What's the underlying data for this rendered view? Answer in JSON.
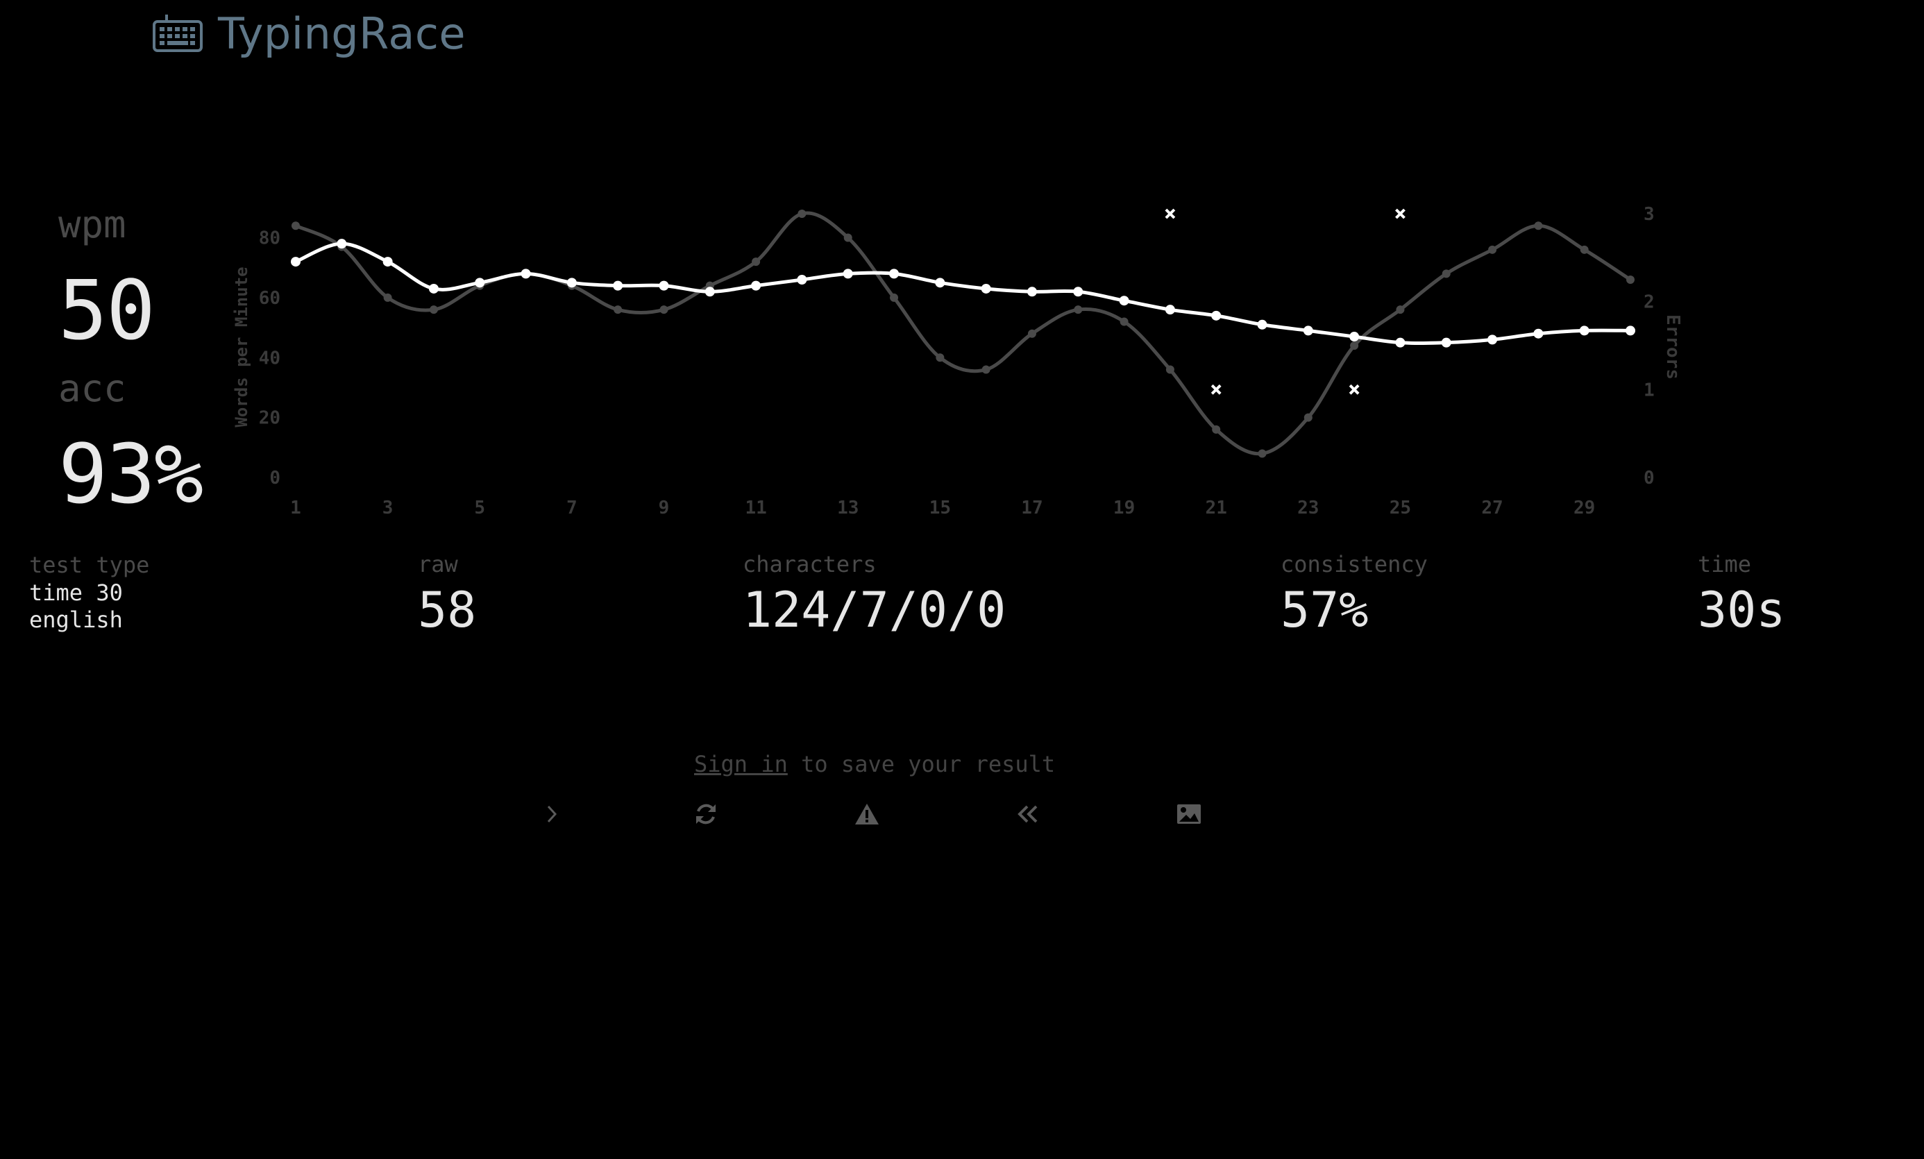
{
  "header": {
    "title": "TypingRace"
  },
  "stats": {
    "wpm_label": "wpm",
    "wpm_value": "50",
    "acc_label": "acc",
    "acc_value": "93%"
  },
  "details": {
    "test_type_label": "test type",
    "test_type_mode": "time 30",
    "test_type_language": "english",
    "raw_label": "raw",
    "raw_value": "58",
    "characters_label": "characters",
    "characters_value": "124/7/0/0",
    "consistency_label": "consistency",
    "consistency_value": "57%",
    "time_label": "time",
    "time_value": "30s"
  },
  "footer": {
    "signin_link": "Sign in",
    "signin_text": " to save your result"
  },
  "actions": [
    {
      "name": "next-test-button",
      "icon": "chevron-right-icon"
    },
    {
      "name": "restart-button",
      "icon": "refresh-icon"
    },
    {
      "name": "report-button",
      "icon": "warning-icon"
    },
    {
      "name": "replay-button",
      "icon": "double-chevron-left-icon"
    },
    {
      "name": "screenshot-button",
      "icon": "image-icon"
    }
  ],
  "colors": {
    "background": "#000000",
    "logo": "#5f7788",
    "wpm_line": "#ffffff",
    "raw_line": "#4a4a4a",
    "axis_text": "#3a3a3a"
  },
  "chart_data": {
    "type": "line",
    "x": [
      1,
      2,
      3,
      4,
      5,
      6,
      7,
      8,
      9,
      10,
      11,
      12,
      13,
      14,
      15,
      16,
      17,
      18,
      19,
      20,
      21,
      22,
      23,
      24,
      25,
      26,
      27,
      28,
      29,
      30
    ],
    "x_tick_labels": [
      "1",
      "3",
      "5",
      "7",
      "9",
      "11",
      "13",
      "15",
      "17",
      "19",
      "21",
      "23",
      "25",
      "27",
      "29"
    ],
    "ylabel": "Words per Minute",
    "y2label": "Errors",
    "ylim": [
      0,
      88
    ],
    "y_ticks": [
      "0",
      "20",
      "40",
      "60",
      "80"
    ],
    "y2lim": [
      0,
      3
    ],
    "y2_ticks": [
      "0",
      "1",
      "2",
      "3"
    ],
    "series": [
      {
        "role": "wpm",
        "values": [
          72,
          78,
          72,
          63,
          65,
          68,
          65,
          64,
          64,
          62,
          64,
          66,
          68,
          68,
          65,
          63,
          62,
          62,
          59,
          56,
          54,
          51,
          49,
          47,
          45,
          45,
          46,
          48,
          49,
          49
        ]
      },
      {
        "role": "raw",
        "values": [
          84,
          77,
          60,
          56,
          64,
          68,
          64,
          56,
          56,
          64,
          72,
          88,
          80,
          60,
          40,
          36,
          48,
          56,
          52,
          36,
          16,
          8,
          20,
          44,
          56,
          68,
          76,
          84,
          76,
          66
        ]
      },
      {
        "role": "errors",
        "type": "scatter",
        "points": [
          [
            20,
            3
          ],
          [
            21,
            1
          ],
          [
            24,
            1
          ],
          [
            25,
            3
          ]
        ]
      }
    ],
    "grid": false,
    "legend": "none"
  }
}
